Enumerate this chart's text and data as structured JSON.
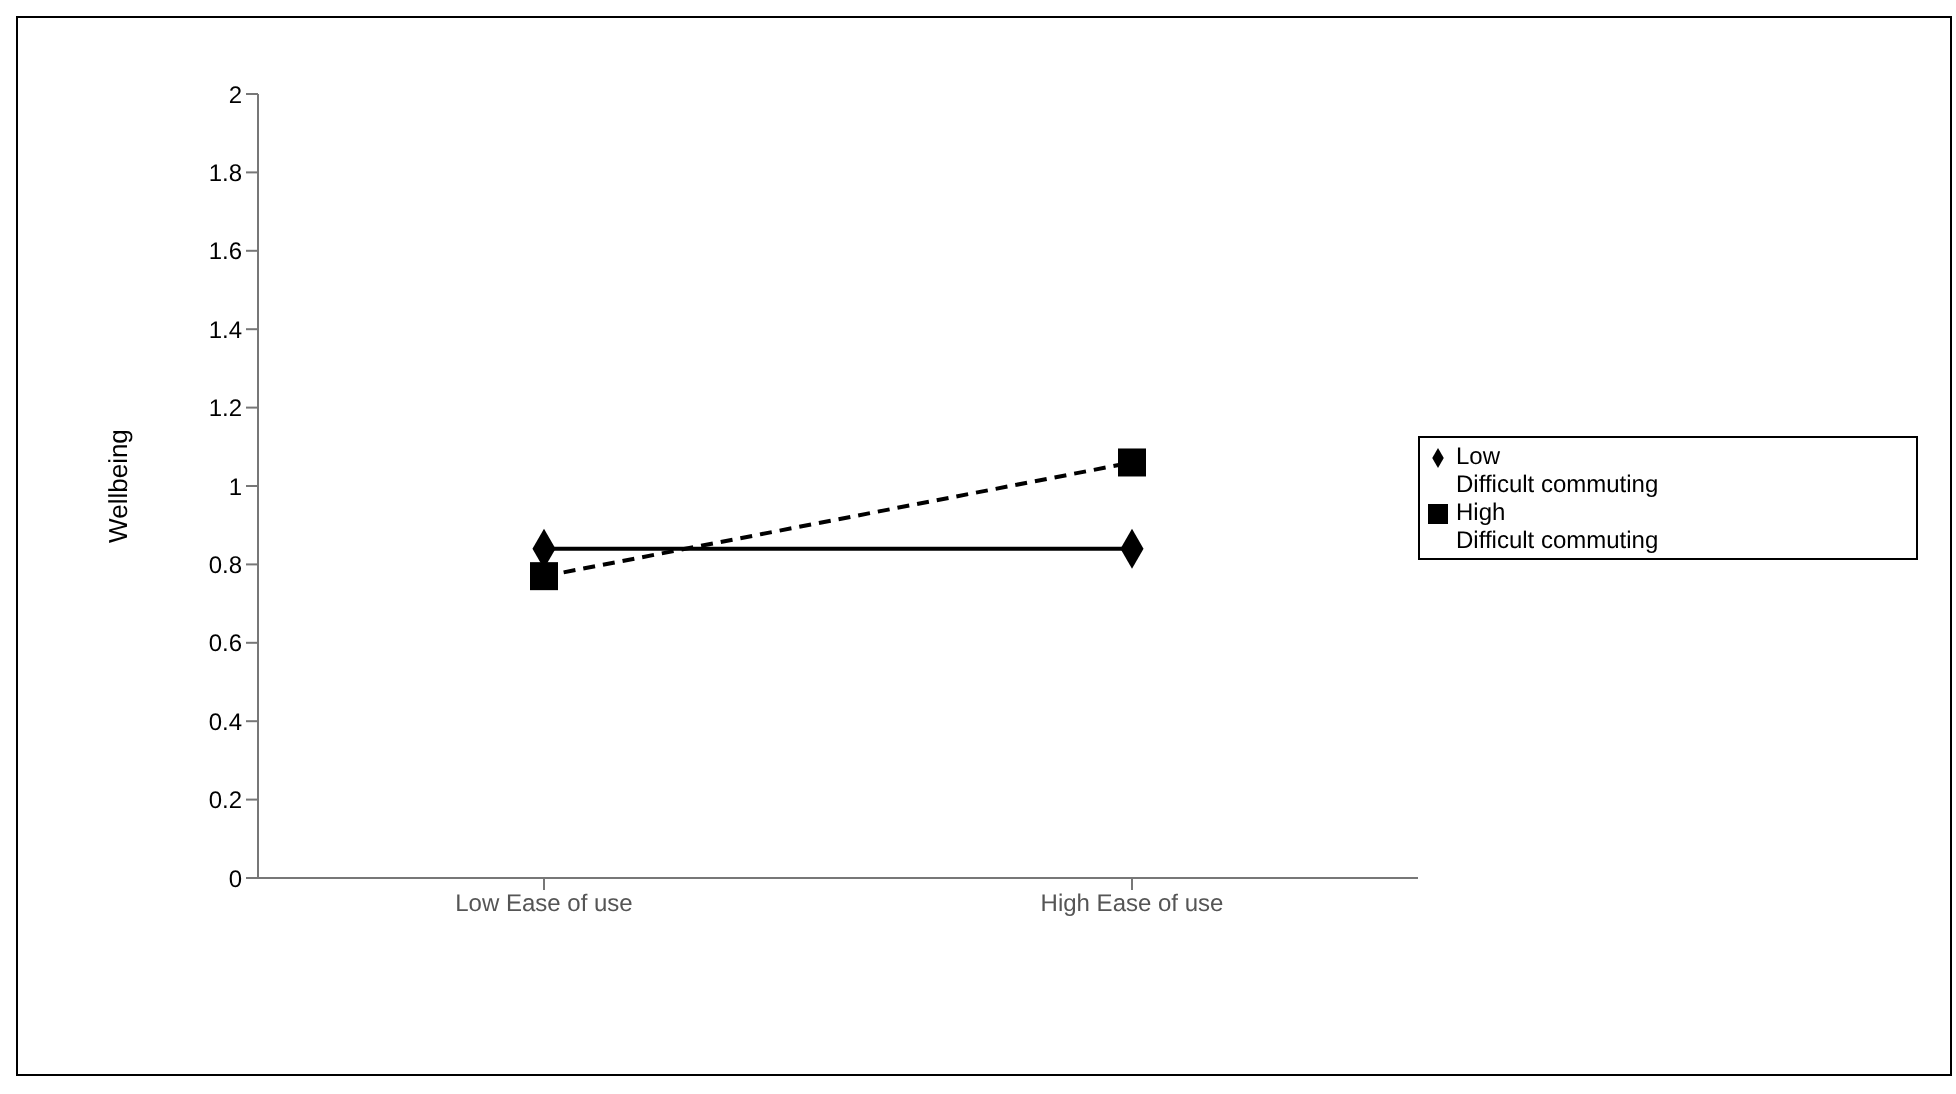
{
  "chart_data": {
    "type": "line",
    "ylabel": "Wellbeing",
    "categories": [
      "Low Ease of use",
      "High Ease of use"
    ],
    "series": [
      {
        "name": "Low\nDifficult commuting",
        "color": "#000000",
        "values": [
          0.84,
          0.84
        ],
        "marker": "diamond",
        "line_style": "solid"
      },
      {
        "name": "High\nDifficult commuting",
        "color": "#000000",
        "values": [
          0.77,
          1.06
        ],
        "marker": "square",
        "line_style": "dashed"
      }
    ],
    "ylim": [
      0,
      2
    ],
    "yticks": [
      0,
      0.2,
      0.4,
      0.6,
      0.8,
      1,
      1.2,
      1.4,
      1.6,
      1.8,
      2
    ],
    "grid": false,
    "legend": "right"
  }
}
